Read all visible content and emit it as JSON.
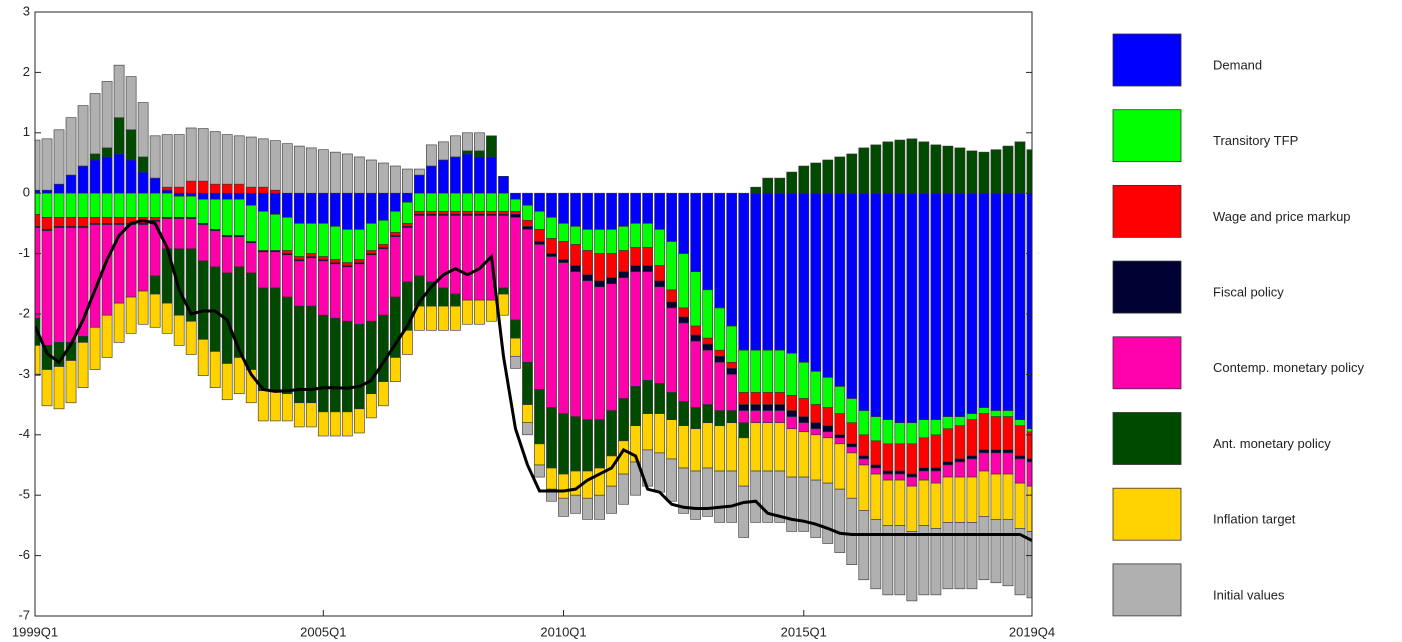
{
  "chart_data": {
    "type": "bar",
    "stacked": true,
    "legend": "right",
    "categories": [
      "1999Q1",
      null,
      null,
      null,
      null,
      null,
      null,
      null,
      null,
      null,
      null,
      null,
      null,
      null,
      null,
      null,
      null,
      null,
      null,
      null,
      null,
      null,
      null,
      null,
      "2005Q1",
      null,
      null,
      null,
      null,
      null,
      null,
      null,
      null,
      null,
      null,
      null,
      null,
      null,
      null,
      null,
      null,
      null,
      null,
      null,
      "2010Q1",
      null,
      null,
      null,
      null,
      null,
      null,
      null,
      null,
      null,
      null,
      null,
      null,
      null,
      null,
      null,
      null,
      null,
      null,
      null,
      "2015Q1",
      null,
      null,
      null,
      null,
      null,
      null,
      null,
      null,
      null,
      null,
      null,
      null,
      null,
      null,
      null,
      null,
      null,
      null,
      "2019Q4"
    ],
    "ylim": [
      -7,
      3
    ],
    "yticks": [
      -7,
      -6,
      -5,
      -4,
      -3,
      -2,
      -1,
      0,
      1,
      2,
      3
    ],
    "series": [
      {
        "name": "Demand",
        "color": "#0000ff",
        "values": [
          0.05,
          0.05,
          0.15,
          0.3,
          0.45,
          0.55,
          0.6,
          0.65,
          0.55,
          0.35,
          0.25,
          0.05,
          -0.05,
          -0.05,
          -0.1,
          -0.1,
          -0.1,
          -0.1,
          -0.2,
          -0.3,
          -0.35,
          -0.4,
          -0.5,
          -0.5,
          -0.5,
          -0.55,
          -0.6,
          -0.6,
          -0.5,
          -0.45,
          -0.3,
          -0.15,
          0.3,
          0.45,
          0.55,
          0.6,
          0.65,
          0.6,
          0.6,
          0.28,
          -0.1,
          -0.2,
          -0.3,
          -0.4,
          -0.5,
          -0.55,
          -0.6,
          -0.6,
          -0.6,
          -0.55,
          -0.5,
          -0.5,
          -0.6,
          -0.8,
          -1.0,
          -1.3,
          -1.6,
          -1.9,
          -2.2,
          -2.6,
          -2.6,
          -2.6,
          -2.6,
          -2.65,
          -2.8,
          -2.95,
          -3.05,
          -3.2,
          -3.4,
          -3.6,
          -3.7,
          -3.75,
          -3.8,
          -3.8,
          -3.75,
          -3.75,
          -3.7,
          -3.7,
          -3.65,
          -3.55,
          -3.6,
          -3.6,
          -3.75,
          -3.9
        ]
      },
      {
        "name": "Transitory TFP",
        "color": "#00ff00",
        "values": [
          -0.35,
          -0.4,
          -0.4,
          -0.4,
          -0.4,
          -0.4,
          -0.4,
          -0.4,
          -0.4,
          -0.4,
          -0.4,
          -0.4,
          -0.35,
          -0.35,
          -0.4,
          -0.5,
          -0.6,
          -0.6,
          -0.6,
          -0.65,
          -0.6,
          -0.55,
          -0.55,
          -0.5,
          -0.55,
          -0.55,
          -0.55,
          -0.5,
          -0.45,
          -0.4,
          -0.35,
          -0.35,
          -0.3,
          -0.3,
          -0.3,
          -0.3,
          -0.3,
          -0.3,
          -0.3,
          -0.3,
          -0.2,
          -0.25,
          -0.3,
          -0.35,
          -0.3,
          -0.3,
          -0.35,
          -0.4,
          -0.4,
          -0.4,
          -0.4,
          -0.4,
          -0.6,
          -0.8,
          -0.9,
          -0.9,
          -0.8,
          -0.7,
          -0.6,
          -0.7,
          -0.7,
          -0.7,
          -0.7,
          -0.7,
          -0.6,
          -0.55,
          -0.5,
          -0.45,
          -0.4,
          -0.4,
          -0.4,
          -0.4,
          -0.35,
          -0.35,
          -0.3,
          -0.25,
          -0.2,
          -0.15,
          -0.1,
          -0.1,
          -0.1,
          -0.1,
          -0.1,
          -0.05
        ]
      },
      {
        "name": "Wage and price markup",
        "color": "#ff0000",
        "values": [
          -0.2,
          -0.2,
          -0.15,
          -0.15,
          -0.15,
          -0.1,
          -0.1,
          -0.1,
          -0.1,
          -0.1,
          -0.05,
          0.05,
          0.1,
          0.2,
          0.2,
          0.15,
          0.15,
          0.15,
          0.1,
          0.1,
          0.05,
          -0.05,
          -0.05,
          -0.05,
          -0.05,
          -0.05,
          -0.05,
          -0.05,
          -0.05,
          -0.05,
          -0.05,
          -0.05,
          -0.05,
          -0.05,
          -0.05,
          -0.05,
          -0.05,
          -0.05,
          -0.05,
          -0.05,
          -0.05,
          -0.1,
          -0.2,
          -0.25,
          -0.3,
          -0.35,
          -0.4,
          -0.45,
          -0.4,
          -0.35,
          -0.3,
          -0.3,
          -0.25,
          -0.2,
          -0.15,
          -0.15,
          -0.1,
          -0.1,
          -0.1,
          -0.2,
          -0.2,
          -0.2,
          -0.2,
          -0.25,
          -0.3,
          -0.3,
          -0.3,
          -0.35,
          -0.35,
          -0.35,
          -0.4,
          -0.45,
          -0.45,
          -0.5,
          -0.5,
          -0.55,
          -0.55,
          -0.55,
          -0.6,
          -0.6,
          -0.55,
          -0.55,
          -0.5,
          -0.45
        ]
      },
      {
        "name": "Fiscal policy",
        "color": "#000033",
        "values": [
          -0.02,
          -0.02,
          -0.02,
          -0.02,
          -0.02,
          -0.02,
          -0.02,
          -0.02,
          -0.02,
          -0.02,
          -0.02,
          -0.02,
          -0.02,
          -0.02,
          -0.02,
          -0.02,
          -0.02,
          -0.02,
          -0.02,
          -0.02,
          -0.02,
          -0.02,
          -0.02,
          -0.02,
          -0.02,
          -0.02,
          -0.02,
          -0.02,
          -0.02,
          -0.02,
          -0.02,
          -0.02,
          -0.02,
          -0.02,
          -0.02,
          -0.02,
          -0.02,
          -0.02,
          -0.02,
          -0.02,
          -0.05,
          -0.05,
          -0.05,
          -0.05,
          -0.05,
          -0.1,
          -0.1,
          -0.1,
          -0.1,
          -0.1,
          -0.1,
          -0.1,
          -0.1,
          -0.1,
          -0.1,
          -0.1,
          -0.1,
          -0.1,
          -0.1,
          -0.1,
          -0.1,
          -0.1,
          -0.1,
          -0.1,
          -0.1,
          -0.1,
          -0.1,
          -0.05,
          -0.05,
          -0.05,
          -0.05,
          -0.05,
          -0.05,
          -0.05,
          -0.05,
          -0.05,
          -0.05,
          -0.05,
          -0.05,
          -0.05,
          -0.05,
          -0.05,
          -0.05,
          -0.05
        ]
      },
      {
        "name": "Contemp. monetary policy",
        "color": "#ff00aa",
        "values": [
          -1.5,
          -1.9,
          -1.9,
          -1.9,
          -1.8,
          -1.7,
          -1.5,
          -1.3,
          -1.2,
          -1.1,
          -0.9,
          -0.5,
          -0.5,
          -0.5,
          -0.6,
          -0.6,
          -0.6,
          -0.5,
          -0.5,
          -0.6,
          -0.6,
          -0.7,
          -0.75,
          -0.8,
          -0.9,
          -0.9,
          -0.9,
          -1.0,
          -1.1,
          -1.1,
          -1.0,
          -0.9,
          -1.0,
          -1.1,
          -1.2,
          -1.3,
          -1.4,
          -1.4,
          -1.4,
          -1.2,
          -1.7,
          -2.2,
          -2.4,
          -2.5,
          -2.5,
          -2.4,
          -2.3,
          -2.2,
          -2.1,
          -2.0,
          -1.9,
          -1.8,
          -1.6,
          -1.4,
          -1.3,
          -1.1,
          -0.9,
          -0.8,
          -0.6,
          -0.2,
          -0.2,
          -0.2,
          -0.2,
          -0.2,
          -0.15,
          -0.1,
          -0.1,
          -0.1,
          -0.1,
          -0.1,
          -0.1,
          -0.1,
          -0.1,
          -0.15,
          -0.15,
          -0.2,
          -0.2,
          -0.25,
          -0.3,
          -0.3,
          -0.35,
          -0.35,
          -0.4,
          -0.4
        ]
      },
      {
        "name": "Ant. monetary policy",
        "color": "#004a00",
        "values": [
          -0.45,
          -0.4,
          -0.4,
          -0.3,
          -0.1,
          0.1,
          0.15,
          0.6,
          0.5,
          0.25,
          -0.3,
          -0.9,
          -1.1,
          -1.2,
          -1.3,
          -1.4,
          -1.5,
          -1.5,
          -1.6,
          -1.7,
          -1.7,
          -1.6,
          -1.6,
          -1.6,
          -1.6,
          -1.55,
          -1.5,
          -1.4,
          -1.2,
          -1.1,
          -1.0,
          -0.8,
          -0.5,
          -0.4,
          -0.3,
          -0.2,
          0.05,
          0.1,
          0.35,
          -0.1,
          -0.3,
          -0.7,
          -0.9,
          -1.0,
          -1.0,
          -0.9,
          -0.85,
          -0.8,
          -0.75,
          -0.7,
          -0.65,
          -0.55,
          -0.5,
          -0.45,
          -0.4,
          -0.35,
          -0.3,
          -0.25,
          -0.2,
          -0.25,
          0.1,
          0.25,
          0.25,
          0.35,
          0.45,
          0.5,
          0.55,
          0.6,
          0.65,
          0.75,
          0.8,
          0.85,
          0.88,
          0.9,
          0.85,
          0.8,
          0.78,
          0.75,
          0.7,
          0.68,
          0.72,
          0.78,
          0.85,
          0.72
        ]
      },
      {
        "name": "Inflation target",
        "color": "#ffd200",
        "values": [
          -0.5,
          -0.6,
          -0.7,
          -0.7,
          -0.75,
          -0.7,
          -0.7,
          -0.65,
          -0.6,
          -0.55,
          -0.55,
          -0.5,
          -0.5,
          -0.55,
          -0.6,
          -0.6,
          -0.6,
          -0.6,
          -0.55,
          -0.5,
          -0.5,
          -0.45,
          -0.4,
          -0.4,
          -0.4,
          -0.4,
          -0.4,
          -0.4,
          -0.4,
          -0.4,
          -0.4,
          -0.4,
          -0.4,
          -0.4,
          -0.4,
          -0.4,
          -0.4,
          -0.4,
          -0.35,
          -0.35,
          -0.3,
          -0.3,
          -0.35,
          -0.35,
          -0.4,
          -0.4,
          -0.45,
          -0.45,
          -0.5,
          -0.55,
          -0.6,
          -0.6,
          -0.65,
          -0.65,
          -0.7,
          -0.7,
          -0.75,
          -0.75,
          -0.8,
          -0.8,
          -0.8,
          -0.8,
          -0.8,
          -0.8,
          -0.75,
          -0.75,
          -0.75,
          -0.75,
          -0.75,
          -0.75,
          -0.75,
          -0.75,
          -0.75,
          -0.75,
          -0.75,
          -0.75,
          -0.75,
          -0.75,
          -0.75,
          -0.75,
          -0.75,
          -0.75,
          -0.75,
          -0.75
        ]
      },
      {
        "name": "Initial values",
        "color": "#b0b0b0",
        "values": [
          0.83,
          0.85,
          0.9,
          0.95,
          1.0,
          1.0,
          1.1,
          0.87,
          0.88,
          0.9,
          0.7,
          0.87,
          0.87,
          0.88,
          0.87,
          0.87,
          0.82,
          0.8,
          0.83,
          0.8,
          0.82,
          0.82,
          0.78,
          0.75,
          0.72,
          0.68,
          0.65,
          0.6,
          0.55,
          0.5,
          0.45,
          0.4,
          0.1,
          0.35,
          0.3,
          0.35,
          0.3,
          0.3,
          0,
          0,
          -0.2,
          -0.2,
          -0.2,
          -0.2,
          -0.3,
          -0.3,
          -0.35,
          -0.4,
          -0.45,
          -0.5,
          -0.55,
          -0.6,
          -0.65,
          -0.7,
          -0.75,
          -0.8,
          -0.8,
          -0.85,
          -0.85,
          -0.85,
          -0.85,
          -0.85,
          -0.85,
          -0.9,
          -0.9,
          -0.95,
          -1.0,
          -1.05,
          -1.1,
          -1.15,
          -1.15,
          -1.15,
          -1.15,
          -1.15,
          -1.15,
          -1.1,
          -1.1,
          -1.1,
          -1.1,
          -1.05,
          -1.05,
          -1.1,
          -1.1,
          -1.1
        ]
      }
    ],
    "line": {
      "color": "#000000",
      "values": [
        -2.2,
        -2.65,
        -2.8,
        -2.5,
        -2.1,
        -1.6,
        -1.1,
        -0.7,
        -0.5,
        -0.45,
        -0.5,
        -0.9,
        -1.6,
        -2.0,
        -1.95,
        -1.95,
        -2.1,
        -2.6,
        -3.0,
        -3.25,
        -3.28,
        -3.27,
        -3.25,
        -3.25,
        -3.22,
        -3.22,
        -3.23,
        -3.2,
        -3.1,
        -2.8,
        -2.5,
        -2.2,
        -1.8,
        -1.55,
        -1.35,
        -1.25,
        -1.35,
        -1.25,
        -1.05,
        -2.7,
        -3.9,
        -4.5,
        -4.93,
        -4.93,
        -4.93,
        -4.9,
        -4.75,
        -4.65,
        -4.55,
        -4.25,
        -4.35,
        -4.9,
        -4.95,
        -5.15,
        -5.2,
        -5.22,
        -5.22,
        -5.2,
        -5.18,
        -5.12,
        -5.1,
        -5.3,
        -5.35,
        -5.4,
        -5.43,
        -5.48,
        -5.55,
        -5.63,
        -5.65,
        -5.65,
        -5.65,
        -5.65,
        -5.65,
        -5.65,
        -5.65,
        -5.65,
        -5.65,
        -5.65,
        -5.65,
        -5.65,
        -5.65,
        -5.65,
        -5.65,
        -5.75
      ]
    }
  }
}
